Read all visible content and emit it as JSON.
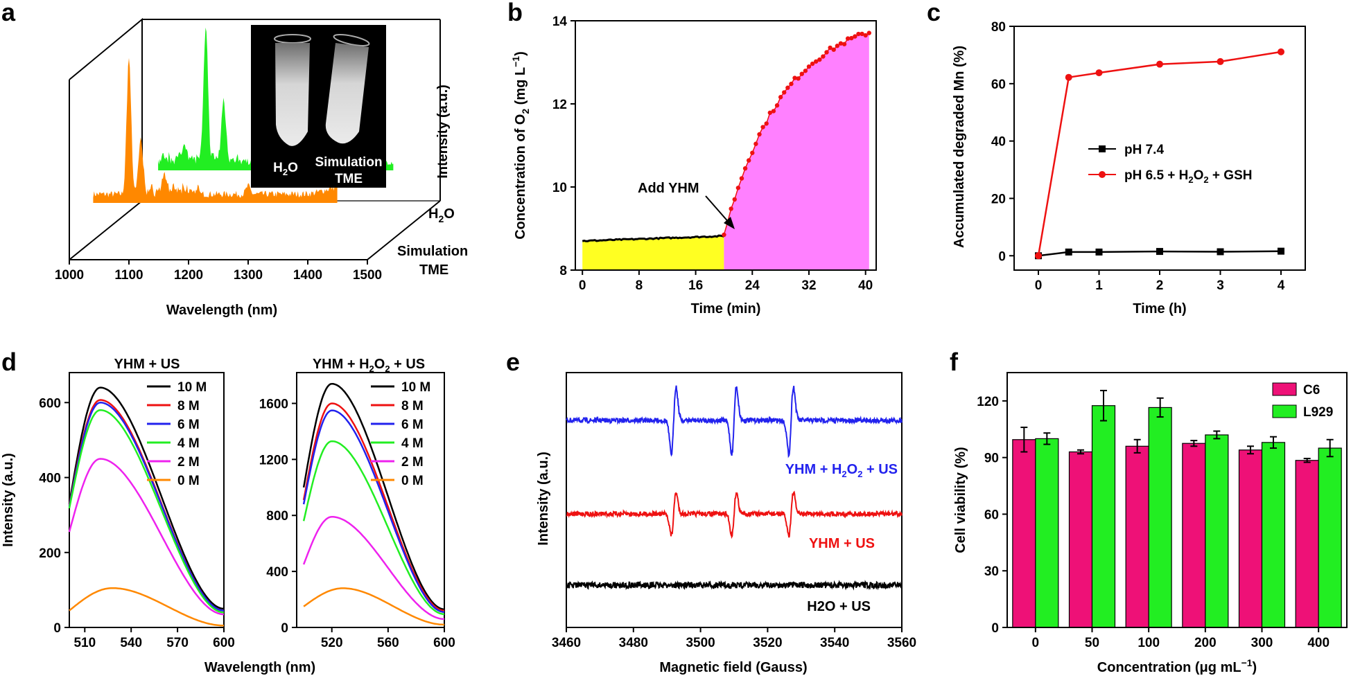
{
  "panel_letters": [
    "a",
    "b",
    "c",
    "d",
    "e",
    "f"
  ],
  "chart_data": [
    {
      "id": "a",
      "type": "line",
      "xlabel": "Wavelength (nm)",
      "ylabel": "Intensity (a.u.)",
      "xlim": [
        1000,
        1500
      ],
      "xticks": [
        1000,
        1100,
        1200,
        1300,
        1400,
        1500
      ],
      "series": [
        {
          "name": "H2O",
          "color": "#22ee22",
          "peaks": [
            [
              1130,
              0.12
            ],
            [
              1165,
              1.0
            ],
            [
              1195,
              0.45
            ],
            [
              1250,
              0.08
            ],
            [
              1400,
              0.06
            ]
          ]
        },
        {
          "name": "Simulation TME",
          "color": "#ff8800",
          "peaks": [
            [
              1100,
              1.0
            ],
            [
              1120,
              0.38
            ],
            [
              1160,
              0.12
            ],
            [
              1300,
              0.06
            ],
            [
              1450,
              0.05
            ]
          ]
        }
      ],
      "depth_labels": {
        "h2o_main": "H",
        "h2o_sub": "2",
        "h2o_end": "O",
        "sim1": "Simulation",
        "sim2": "TME"
      },
      "inset": {
        "left_main": "H",
        "left_sub": "2",
        "left_end": "O",
        "right1": "Simulation",
        "right2": "TME"
      }
    },
    {
      "id": "b",
      "type": "area",
      "xlabel": "Time (min)",
      "ylabel_main": "Concentration of O",
      "ylabel_sub": "2",
      "ylabel_end": " (mg L",
      "ylabel_sup": "−1",
      "ylabel_close": ")",
      "xlim": [
        -1,
        41.5
      ],
      "ylim": [
        8,
        14
      ],
      "xticks": [
        0,
        8,
        16,
        24,
        32,
        40
      ],
      "yticks": [
        8,
        10,
        12,
        14
      ],
      "baseline": {
        "x_start": 0,
        "x_end": 20,
        "y_start": 8.7,
        "y_end": 8.82,
        "color": "#ffff22"
      },
      "rise": {
        "x_start": 20,
        "x_end": 40.5,
        "y_start": 8.85,
        "y_end": 13.72,
        "k": 0.12,
        "color": "#ff80ff"
      },
      "annotation": "Add YHM"
    },
    {
      "id": "c",
      "type": "line",
      "xlabel": "Time (h)",
      "ylabel": "Accumulated degraded Mn (%)",
      "xlim": [
        -0.4,
        4.4
      ],
      "ylim": [
        -5,
        80
      ],
      "xticks": [
        0,
        1,
        2,
        3,
        4
      ],
      "yticks": [
        0,
        20,
        40,
        60,
        80
      ],
      "series": [
        {
          "name": "pH 7.4",
          "color": "#000000",
          "x": [
            0,
            0.5,
            1,
            2,
            3,
            4
          ],
          "values": [
            0,
            1.3,
            1.3,
            1.5,
            1.4,
            1.6
          ]
        },
        {
          "name": "pH 6.5 + H2O2 + GSH",
          "color": "#ee1111",
          "x": [
            0,
            0.5,
            1,
            2,
            3,
            4
          ],
          "values": [
            0,
            62.2,
            63.8,
            66.8,
            67.7,
            71.1
          ]
        }
      ],
      "legend": {
        "l1": "pH 7.4",
        "l2_a": "pH 6.5 + H",
        "l2_b": "2",
        "l2_c": "O",
        "l2_d": "2",
        "l2_e": " + GSH"
      }
    },
    {
      "id": "d1",
      "type": "line",
      "title": "YHM + US",
      "xlabel": "Wavelength (nm)",
      "ylabel": "Intensity (a.u.)",
      "xlim": [
        500,
        600
      ],
      "ylim": [
        0,
        680
      ],
      "xticks": [
        510,
        540,
        570,
        600
      ],
      "yticks": [
        0,
        200,
        400,
        600
      ],
      "series": [
        {
          "name": "10 M",
          "color": "#000000",
          "peak": 640,
          "start": 330,
          "end": 50
        },
        {
          "name": "8 M",
          "color": "#ee1111",
          "peak": 607,
          "start": 325,
          "end": 45
        },
        {
          "name": "6 M",
          "color": "#2222ee",
          "peak": 600,
          "start": 322,
          "end": 45
        },
        {
          "name": "4 M",
          "color": "#22ee22",
          "peak": 580,
          "start": 318,
          "end": 40
        },
        {
          "name": "2 M",
          "color": "#ee22ee",
          "peak": 450,
          "start": 255,
          "end": 35
        },
        {
          "name": "0 M",
          "color": "#ff8800",
          "peak": 105,
          "start": 45,
          "end": 5
        }
      ]
    },
    {
      "id": "d2",
      "type": "line",
      "title": "YHM + H2O2 + US",
      "title_a": "YHM + H",
      "title_b": "2",
      "title_c": "O",
      "title_d": "2",
      "title_e": " + US",
      "xlabel": "Wavelength (nm)",
      "ylabel": "",
      "xlim": [
        495,
        600
      ],
      "ylim": [
        0,
        1820
      ],
      "xticks": [
        520,
        560,
        600
      ],
      "yticks": [
        0,
        400,
        800,
        1200,
        1600
      ],
      "series": [
        {
          "name": "10 M",
          "color": "#000000",
          "peak": 1740,
          "start": 1000,
          "end": 130
        },
        {
          "name": "8 M",
          "color": "#ee1111",
          "peak": 1600,
          "start": 910,
          "end": 120
        },
        {
          "name": "6 M",
          "color": "#2222ee",
          "peak": 1550,
          "start": 880,
          "end": 110
        },
        {
          "name": "4 M",
          "color": "#22ee22",
          "peak": 1330,
          "start": 760,
          "end": 95
        },
        {
          "name": "2 M",
          "color": "#ee22ee",
          "peak": 790,
          "start": 450,
          "end": 60
        },
        {
          "name": "0 M",
          "color": "#ff8800",
          "peak": 280,
          "start": 150,
          "end": 20
        }
      ]
    },
    {
      "id": "e",
      "type": "line",
      "xlabel": "Magnetic field (Gauss)",
      "ylabel": "Intensity (a.u.)",
      "xlim": [
        3460,
        3560
      ],
      "xticks": [
        3460,
        3480,
        3500,
        3520,
        3540,
        3560
      ],
      "peak_fields": [
        3492,
        3510,
        3527
      ],
      "series": [
        {
          "name": "YHM + H2O2 + US",
          "color": "#2222ee",
          "amplitude": 1.0
        },
        {
          "name": "YHM + US",
          "color": "#ee1111",
          "amplitude": 0.62
        },
        {
          "name": "H2O + US",
          "color": "#000000",
          "amplitude": 0.0
        }
      ],
      "labels": {
        "top_a": "YHM + H",
        "top_b": "2",
        "top_c": "O",
        "top_d": "2",
        "top_e": " + US",
        "mid": "YHM + US",
        "bot": "H2O + US"
      }
    },
    {
      "id": "f",
      "type": "bar",
      "xlabel_a": "Concentration (μg mL",
      "xlabel_sup": "−1",
      "xlabel_close": ")",
      "ylabel": "Cell viability (%)",
      "categories": [
        "0",
        "50",
        "100",
        "200",
        "300",
        "400"
      ],
      "ylim": [
        0,
        135
      ],
      "yticks": [
        0,
        30,
        60,
        90,
        120
      ],
      "series": [
        {
          "name": "C6",
          "color": "#ee1177",
          "values": [
            99.5,
            93,
            96,
            97.5,
            94,
            88.5
          ],
          "errors": [
            6.5,
            1,
            3.5,
            1.5,
            2,
            1
          ]
        },
        {
          "name": "L929",
          "color": "#22ee22",
          "values": [
            100,
            117.5,
            116.5,
            102,
            98,
            95
          ],
          "errors": [
            3,
            8,
            5,
            2,
            3,
            4.5
          ]
        }
      ]
    }
  ]
}
